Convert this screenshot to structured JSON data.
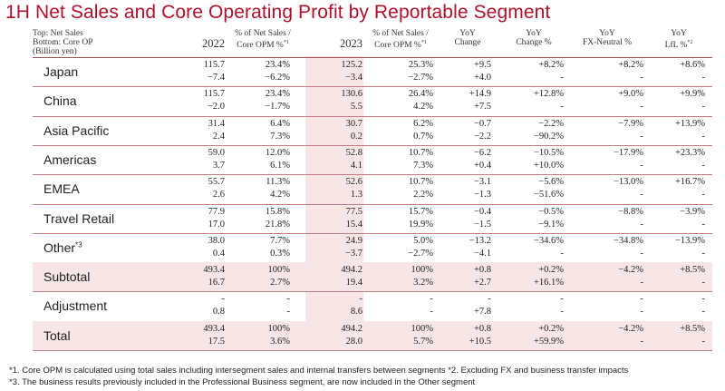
{
  "title": "1H Net Sales and Core Operating Profit by Reportable Segment",
  "legend": {
    "line1": "Top: Net Sales",
    "line2": "Bottom: Core OP",
    "line3": "(Billion yen)"
  },
  "headers": {
    "y2022": "2022",
    "pct2022_1": "% of Net Sales /",
    "pct2022_2": "Core OPM %",
    "pct2022_sup": "*1",
    "y2023": "2023",
    "pct2023_1": "% of Net Sales /",
    "pct2023_2": "Core OPM %",
    "pct2023_sup": "*1",
    "yoy_change_1": "YoY",
    "yoy_change_2": "Change",
    "yoy_pct_1": "YoY",
    "yoy_pct_2": "Change %",
    "yoy_fx_1": "YoY",
    "yoy_fx_2": "FX-Neutral %",
    "yoy_lfl_1": "YoY",
    "yoy_lfl_2": "LfL %",
    "yoy_lfl_sup": "*2"
  },
  "rows": [
    {
      "name": "Japan",
      "sup": "",
      "top": [
        "115.7",
        "23.4%",
        "125.2",
        "25.3%",
        "+9.5",
        "+8.2%",
        "+8.2%",
        "+8.6%"
      ],
      "bottom": [
        "−7.4",
        "−6.2%",
        "−3.4",
        "−2.7%",
        "+4.0",
        "-",
        "-",
        "-"
      ]
    },
    {
      "name": "China",
      "sup": "",
      "top": [
        "115.7",
        "23.4%",
        "130.6",
        "26.4%",
        "+14.9",
        "+12.8%",
        "+9.0%",
        "+9.9%"
      ],
      "bottom": [
        "−2.0",
        "−1.7%",
        "5.5",
        "4.2%",
        "+7.5",
        "-",
        "-",
        "-"
      ]
    },
    {
      "name": "Asia Pacific",
      "sup": "",
      "top": [
        "31.4",
        "6.4%",
        "30.7",
        "6.2%",
        "−0.7",
        "−2.2%",
        "−7.9%",
        "+13.9%"
      ],
      "bottom": [
        "2.4",
        "7.3%",
        "0.2",
        "0.7%",
        "−2.2",
        "−90.2%",
        "-",
        "-"
      ]
    },
    {
      "name": "Americas",
      "sup": "",
      "top": [
        "59.0",
        "12.0%",
        "52.8",
        "10.7%",
        "−6.2",
        "−10.5%",
        "−17.9%",
        "+23.3%"
      ],
      "bottom": [
        "3.7",
        "6.1%",
        "4.1",
        "7.3%",
        "+0.4",
        "+10.0%",
        "-",
        "-"
      ]
    },
    {
      "name": "EMEA",
      "sup": "",
      "top": [
        "55.7",
        "11.3%",
        "52.6",
        "10.7%",
        "−3.1",
        "−5.6%",
        "−13.0%",
        "+16.7%"
      ],
      "bottom": [
        "2.6",
        "4.2%",
        "1.3",
        "2.2%",
        "−1.3",
        "−51.6%",
        "-",
        "-"
      ]
    },
    {
      "name": "Travel Retail",
      "sup": "",
      "top": [
        "77.9",
        "15.8%",
        "77.5",
        "15.7%",
        "−0.4",
        "−0.5%",
        "−8.8%",
        "−3.9%"
      ],
      "bottom": [
        "17.0",
        "21.8%",
        "15.4",
        "19.9%",
        "−1.5",
        "−9.1%",
        "-",
        "-"
      ]
    },
    {
      "name": "Other",
      "sup": "*3",
      "top": [
        "38.0",
        "7.7%",
        "24.9",
        "5.0%",
        "−13.2",
        "−34.6%",
        "−34.8%",
        "−13.9%"
      ],
      "bottom": [
        "0.4",
        "0.3%",
        "−3.7",
        "−2.7%",
        "−4.1",
        "-",
        "-",
        "-"
      ]
    },
    {
      "name": "Subtotal",
      "sup": "",
      "top": [
        "493.4",
        "100%",
        "494.2",
        "100%",
        "+0.8",
        "+0.2%",
        "−4.2%",
        "+8.5%"
      ],
      "bottom": [
        "16.7",
        "2.7%",
        "19.4",
        "3.2%",
        "+2.7",
        "+16.1%",
        "-",
        "-"
      ]
    },
    {
      "name": "Adjustment",
      "sup": "",
      "top": [
        "-",
        "-",
        "-",
        "-",
        "-",
        "-",
        "-",
        "-"
      ],
      "bottom": [
        "0.8",
        "-",
        "8.6",
        "-",
        "+7.8",
        "-",
        "-",
        "-"
      ]
    },
    {
      "name": "Total",
      "sup": "",
      "top": [
        "493.4",
        "100%",
        "494.2",
        "100%",
        "+0.8",
        "+0.2%",
        "−4.2%",
        "+8.5%"
      ],
      "bottom": [
        "17.5",
        "3.6%",
        "28.0",
        "5.7%",
        "+10.5",
        "+59.9%",
        "-",
        "-"
      ]
    }
  ],
  "footnotes": {
    "line1": "*1. Core OPM is calculated using total sales including intersegment sales and internal transfers between segments   *2. Excluding FX and business transfer impacts",
    "line2": "*3. The business results previously included in the Professional Business segment, are now included in the Other segment"
  }
}
